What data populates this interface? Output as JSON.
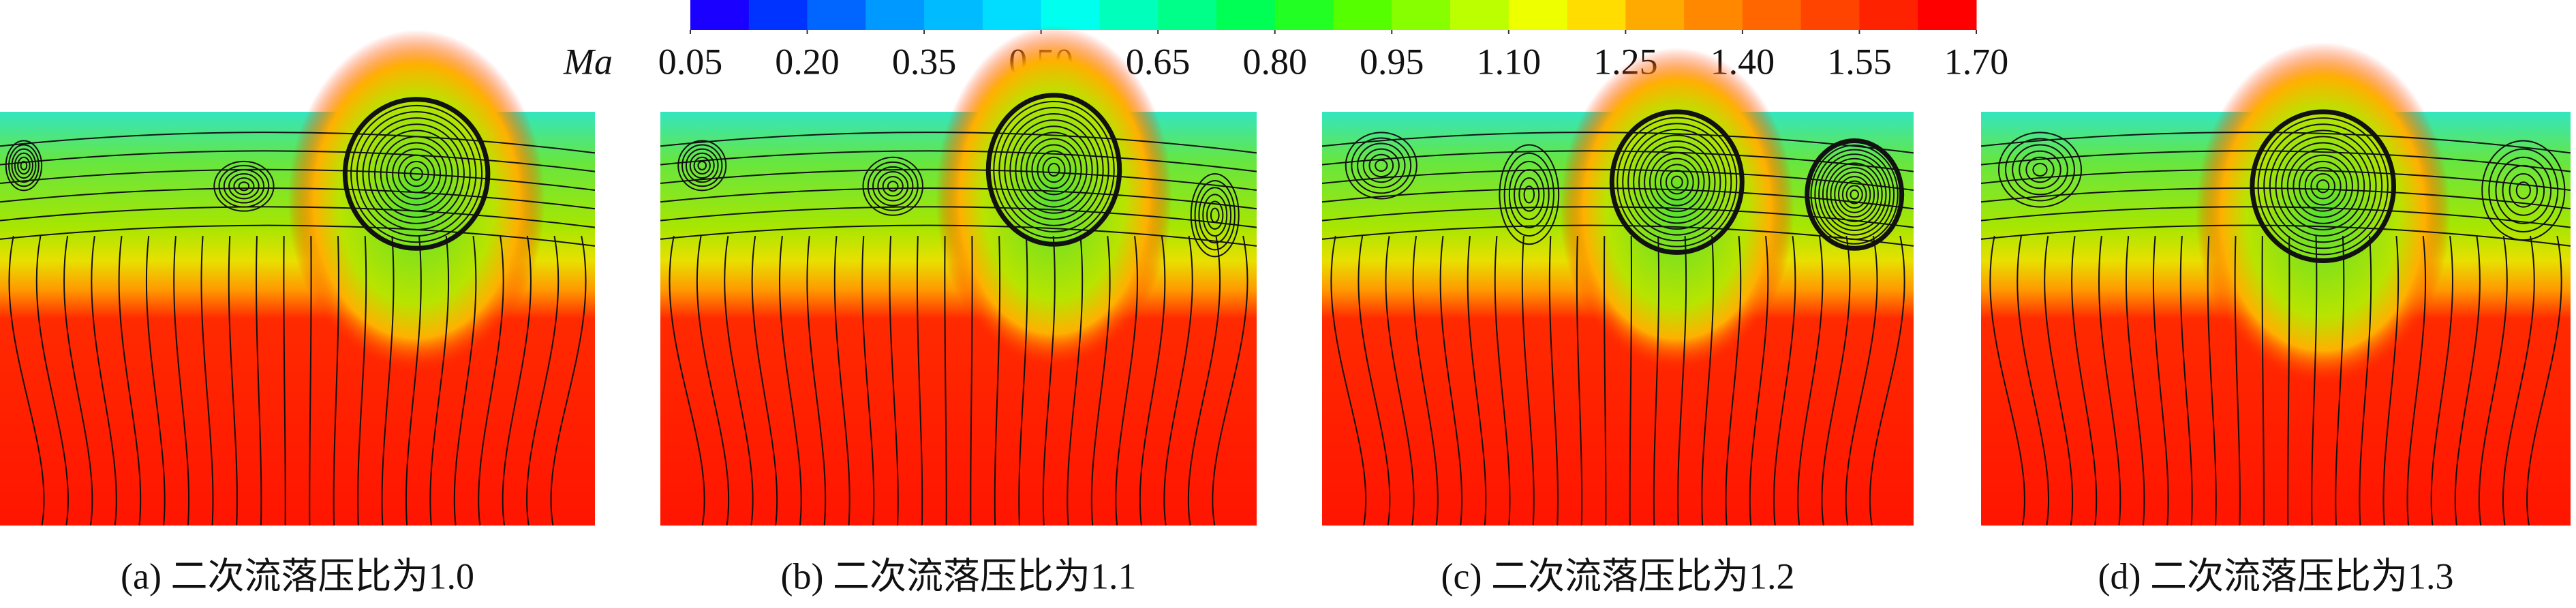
{
  "colorbar": {
    "label": "Ma",
    "lim": [
      0.05,
      1.7
    ],
    "ticks": [
      {
        "value": 0.05,
        "label": "0.05"
      },
      {
        "value": 0.2,
        "label": "0.20"
      },
      {
        "value": 0.35,
        "label": "0.35"
      },
      {
        "value": 0.5,
        "label": "0.50"
      },
      {
        "value": 0.65,
        "label": "0.65"
      },
      {
        "value": 0.8,
        "label": "0.80"
      },
      {
        "value": 0.95,
        "label": "0.95"
      },
      {
        "value": 1.1,
        "label": "1.10"
      },
      {
        "value": 1.25,
        "label": "1.25"
      },
      {
        "value": 1.4,
        "label": "1.40"
      },
      {
        "value": 1.55,
        "label": "1.55"
      },
      {
        "value": 1.7,
        "label": "1.70"
      }
    ],
    "colors": [
      "#1a00ff",
      "#0033ff",
      "#0066ff",
      "#0099ff",
      "#00bbff",
      "#00ddff",
      "#00ffee",
      "#00ffbb",
      "#00ff88",
      "#00ff55",
      "#22ff22",
      "#55ff00",
      "#88ff00",
      "#bbff00",
      "#eeff00",
      "#ffdd00",
      "#ffaa00",
      "#ff8800",
      "#ff6600",
      "#ff4400",
      "#ff2200",
      "#ff0000"
    ]
  },
  "panels": [
    {
      "caption": "(a) 二次流落压比为1.0"
    },
    {
      "caption": "(b) 二次流落压比为1.1"
    },
    {
      "caption": "(c) 二次流落压比为1.2"
    },
    {
      "caption": "(d) 二次流落压比为1.3"
    }
  ]
}
